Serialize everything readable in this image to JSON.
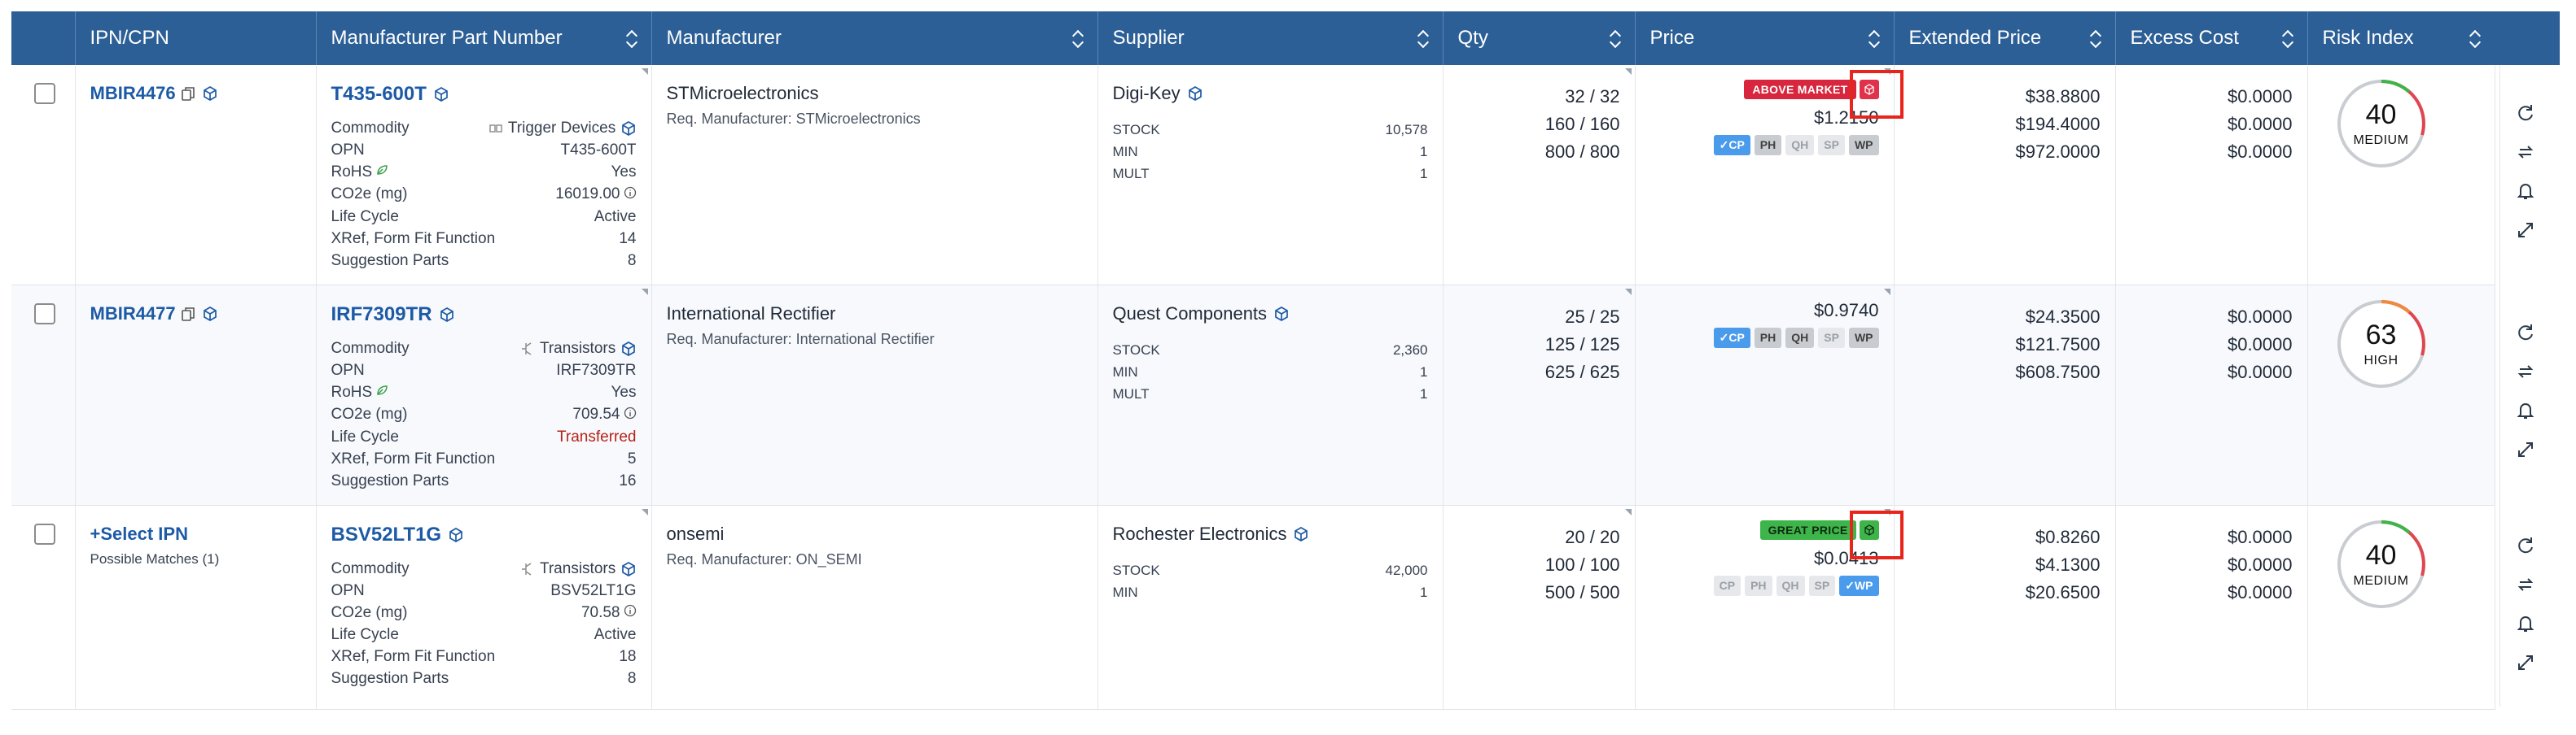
{
  "headers": [
    "IPN/CPN",
    "Manufacturer Part Number",
    "Manufacturer",
    "Supplier",
    "Qty",
    "Price",
    "Extended Price",
    "Excess Cost",
    "Risk Index"
  ],
  "rows": [
    {
      "ipn": "MBIR4476",
      "mpn": "T435-600T",
      "commodity_label": "Commodity",
      "commodity": "Trigger Devices",
      "opn_label": "OPN",
      "opn": "T435-600T",
      "rohs_label": "RoHS",
      "rohs": "Yes",
      "co2_label": "CO2e (mg)",
      "co2": "16019.00",
      "lifecycle_label": "Life Cycle",
      "lifecycle": "Active",
      "xref_label": "XRef, Form Fit Function",
      "xref": "14",
      "sugg_label": "Suggestion Parts",
      "sugg": "8",
      "manufacturer": "STMicroelectronics",
      "req_manufacturer": "Req. Manufacturer: STMicroelectronics",
      "supplier": "Digi-Key",
      "stock_label": "STOCK",
      "stock": "10,578",
      "min_label": "MIN",
      "min": "1",
      "mult_label": "MULT",
      "mult": "1",
      "qty": [
        "32 / 32",
        "160 / 160",
        "800 / 800"
      ],
      "price_badge": "ABOVE MARKET",
      "price": "$1.2150",
      "chips": [
        "✓CP",
        "PH",
        "QH",
        "SP",
        "WP"
      ],
      "ext": [
        "$38.8800",
        "$194.4000",
        "$972.0000"
      ],
      "excess": [
        "$0.0000",
        "$0.0000",
        "$0.0000"
      ],
      "risk": "40",
      "risk_level": "MEDIUM"
    },
    {
      "ipn": "MBIR4477",
      "mpn": "IRF7309TR",
      "commodity_label": "Commodity",
      "commodity": "Transistors",
      "opn_label": "OPN",
      "opn": "IRF7309TR",
      "rohs_label": "RoHS",
      "rohs": "Yes",
      "co2_label": "CO2e (mg)",
      "co2": "709.54",
      "lifecycle_label": "Life Cycle",
      "lifecycle": "Transferred",
      "xref_label": "XRef, Form Fit Function",
      "xref": "5",
      "sugg_label": "Suggestion Parts",
      "sugg": "16",
      "manufacturer": "International Rectifier",
      "req_manufacturer": "Req. Manufacturer: International Rectifier",
      "supplier": "Quest Components",
      "stock_label": "STOCK",
      "stock": "2,360",
      "min_label": "MIN",
      "min": "1",
      "mult_label": "MULT",
      "mult": "1",
      "qty": [
        "25 / 25",
        "125 / 125",
        "625 / 625"
      ],
      "price": "$0.9740",
      "chips": [
        "✓CP",
        "PH",
        "QH",
        "SP",
        "WP"
      ],
      "ext": [
        "$24.3500",
        "$121.7500",
        "$608.7500"
      ],
      "excess": [
        "$0.0000",
        "$0.0000",
        "$0.0000"
      ],
      "risk": "63",
      "risk_level": "HIGH"
    },
    {
      "select_ipn": "Select IPN",
      "possible_matches": "Possible Matches (1)",
      "mpn": "BSV52LT1G",
      "commodity_label": "Commodity",
      "commodity": "Transistors",
      "opn_label": "OPN",
      "opn": "BSV52LT1G",
      "co2_label": "CO2e (mg)",
      "co2": "70.58",
      "lifecycle_label": "Life Cycle",
      "lifecycle": "Active",
      "xref_label": "XRef, Form Fit Function",
      "xref": "18",
      "sugg_label": "Suggestion Parts",
      "sugg": "8",
      "manufacturer": "onsemi",
      "req_manufacturer": "Req. Manufacturer: ON_SEMI",
      "supplier": "Rochester Electronics",
      "stock_label": "STOCK",
      "stock": "42,000",
      "min_label": "MIN",
      "min": "1",
      "qty": [
        "20 / 20",
        "100 / 100",
        "500 / 500"
      ],
      "price_badge": "GREAT PRICE",
      "price": "$0.0413",
      "chips": [
        "CP",
        "PH",
        "QH",
        "SP",
        "✓WP"
      ],
      "ext": [
        "$0.8260",
        "$4.1300",
        "$20.6500"
      ],
      "excess": [
        "$0.0000",
        "$0.0000",
        "$0.0000"
      ],
      "risk": "40",
      "risk_level": "MEDIUM"
    }
  ],
  "colors": {
    "header": "#2c5f96",
    "link": "#1d5aa6",
    "above_market": "#d7263d",
    "great_price": "#3eb54a",
    "highlight": "#e8251c"
  },
  "icons": [
    "cube-icon",
    "copy-icon",
    "leaf-icon",
    "info-icon",
    "refresh-icon",
    "swap-icon",
    "bell-icon",
    "expand-icon"
  ]
}
